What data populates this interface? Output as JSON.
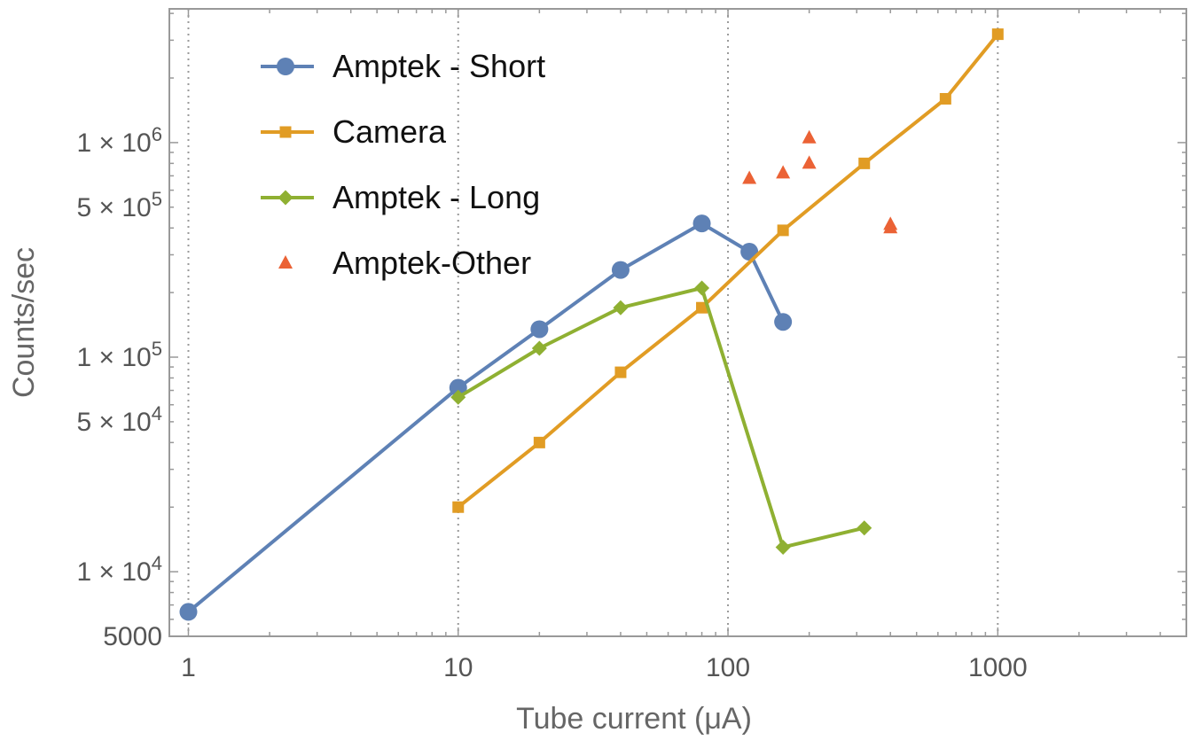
{
  "chart_data": {
    "type": "line",
    "xlabel": "Tube current (μA)",
    "ylabel": "Counts/sec",
    "x_scale": "log",
    "y_scale": "log",
    "xlim": [
      0.85,
      5000
    ],
    "ylim": [
      5000,
      4200000
    ],
    "x_ticks": [
      {
        "value": 1,
        "label": "1"
      },
      {
        "value": 10,
        "label": "10"
      },
      {
        "value": 100,
        "label": "100"
      },
      {
        "value": 1000,
        "label": "1000"
      }
    ],
    "y_ticks": [
      {
        "value": 5000,
        "label": "5000",
        "mant": "",
        "exp": ""
      },
      {
        "value": 10000,
        "label": "",
        "mant": "1 × 10",
        "exp": "4"
      },
      {
        "value": 50000,
        "label": "",
        "mant": "5 × 10",
        "exp": "4"
      },
      {
        "value": 100000,
        "label": "",
        "mant": "1 × 10",
        "exp": "5"
      },
      {
        "value": 500000,
        "label": "",
        "mant": "5 × 10",
        "exp": "5"
      },
      {
        "value": 1000000,
        "label": "",
        "mant": "1 × 10",
        "exp": "6"
      }
    ],
    "grid": "vertical dotted at decades",
    "legend_position": "top-left",
    "series": [
      {
        "name": "Amptek - Short",
        "color": "#5E81B5",
        "marker": "circle",
        "line": true,
        "points": [
          [
            1,
            6500
          ],
          [
            10,
            72000
          ],
          [
            20,
            135000
          ],
          [
            40,
            255000
          ],
          [
            80,
            420000
          ],
          [
            120,
            310000
          ],
          [
            160,
            146000
          ]
        ]
      },
      {
        "name": "Camera",
        "color": "#E19C24",
        "marker": "square",
        "line": true,
        "points": [
          [
            10,
            20000
          ],
          [
            20,
            40000
          ],
          [
            40,
            85000
          ],
          [
            80,
            170000
          ],
          [
            160,
            390000
          ],
          [
            320,
            800000
          ],
          [
            640,
            1600000
          ],
          [
            1000,
            3200000
          ]
        ]
      },
      {
        "name": "Amptek - Long",
        "color": "#8FB032",
        "marker": "diamond",
        "line": true,
        "points": [
          [
            10,
            65000
          ],
          [
            20,
            110000
          ],
          [
            40,
            170000
          ],
          [
            80,
            210000
          ],
          [
            160,
            13000
          ],
          [
            320,
            16000
          ]
        ]
      },
      {
        "name": "Amptek-Other",
        "color": "#EB6235",
        "marker": "triangle",
        "line": false,
        "points": [
          [
            120,
            680000
          ],
          [
            160,
            720000
          ],
          [
            200,
            800000
          ],
          [
            200,
            1050000
          ],
          [
            400,
            415000
          ],
          [
            400,
            400000
          ]
        ]
      }
    ]
  }
}
